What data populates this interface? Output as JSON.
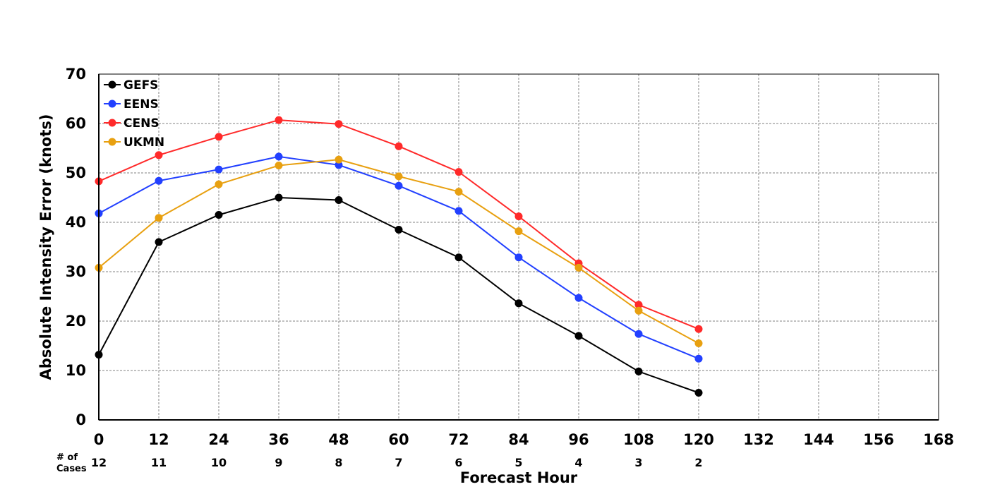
{
  "chart_data": {
    "type": "line",
    "title": "",
    "xlabel": "Forecast Hour",
    "ylabel": "Absolute Intensity Error (knots)",
    "xlim": [
      0,
      168
    ],
    "ylim": [
      0,
      70
    ],
    "x_ticks": [
      "0",
      "12",
      "24",
      "36",
      "48",
      "60",
      "72",
      "84",
      "96",
      "108",
      "120",
      "132",
      "144",
      "156",
      "168"
    ],
    "y_ticks": [
      "0",
      "10",
      "20",
      "30",
      "40",
      "50",
      "60",
      "70"
    ],
    "grid": true,
    "legend_position": "top-left",
    "cases_label": "# of\nCases",
    "cases": [
      {
        "x": 0,
        "n": "12"
      },
      {
        "x": 12,
        "n": "11"
      },
      {
        "x": 24,
        "n": "10"
      },
      {
        "x": 36,
        "n": "9"
      },
      {
        "x": 48,
        "n": "8"
      },
      {
        "x": 60,
        "n": "7"
      },
      {
        "x": 72,
        "n": "6"
      },
      {
        "x": 84,
        "n": "5"
      },
      {
        "x": 96,
        "n": "4"
      },
      {
        "x": 108,
        "n": "3"
      },
      {
        "x": 120,
        "n": "2"
      }
    ],
    "x": [
      0,
      12,
      24,
      36,
      48,
      60,
      72,
      84,
      96,
      108,
      120
    ],
    "series": [
      {
        "name": "GEFS",
        "color": "#000000",
        "values": [
          13.2,
          36.0,
          41.5,
          45.0,
          44.5,
          38.5,
          32.9,
          23.6,
          17.0,
          9.8,
          5.5
        ]
      },
      {
        "name": "EENS",
        "color": "#2240ff",
        "values": [
          41.8,
          48.4,
          50.7,
          53.3,
          51.6,
          47.4,
          42.3,
          32.9,
          24.7,
          17.4,
          12.4
        ]
      },
      {
        "name": "CENS",
        "color": "#ff2a2a",
        "values": [
          48.3,
          53.6,
          57.3,
          60.7,
          59.9,
          55.4,
          50.2,
          41.2,
          31.7,
          23.3,
          18.4
        ]
      },
      {
        "name": "UKMN",
        "color": "#e8a010",
        "values": [
          30.8,
          40.9,
          47.7,
          51.5,
          52.7,
          49.3,
          46.2,
          38.2,
          30.8,
          22.1,
          15.5
        ]
      }
    ]
  }
}
